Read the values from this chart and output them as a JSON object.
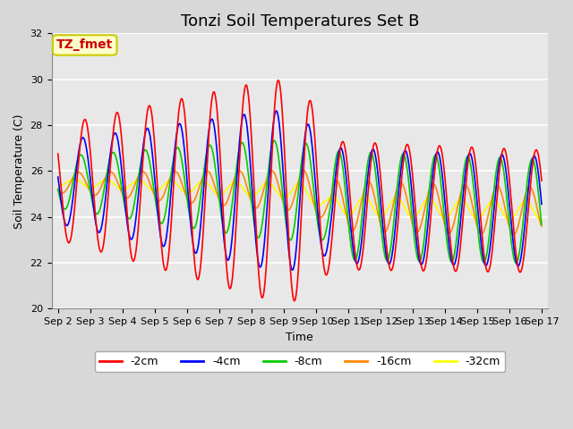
{
  "title": "Tonzi Soil Temperatures Set B",
  "xlabel": "Time",
  "ylabel": "Soil Temperature (C)",
  "ylim": [
    20,
    32
  ],
  "x_tick_labels": [
    "Sep 2",
    "Sep 3",
    "Sep 4",
    "Sep 5",
    "Sep 6",
    "Sep 7",
    "Sep 8",
    "Sep 9",
    "Sep 10",
    "Sep 11",
    "Sep 12",
    "Sep 13",
    "Sep 14",
    "Sep 15",
    "Sep 16",
    "Sep 17"
  ],
  "annotation_text": "TZ_fmet",
  "annotation_color": "#cc0000",
  "annotation_bg": "#ffffcc",
  "annotation_border": "#cccc00",
  "series_colors": {
    "-2cm": "#ff0000",
    "-4cm": "#0000ff",
    "-8cm": "#00cc00",
    "-16cm": "#ff8800",
    "-32cm": "#ffff00"
  },
  "bg_color": "#d8d8d8",
  "plot_bg": "#e8e8e8",
  "grid_color": "#ffffff",
  "title_fontsize": 13,
  "label_fontsize": 9,
  "tick_fontsize": 8
}
